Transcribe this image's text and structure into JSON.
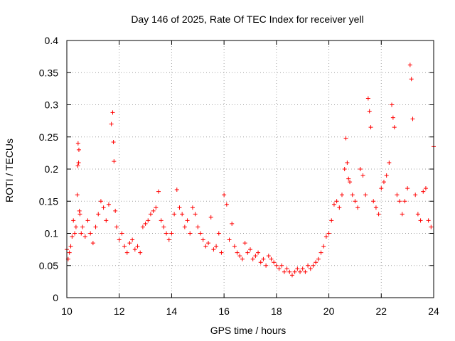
{
  "chart_data": {
    "type": "scatter",
    "title": "Day 146 of 2025, Rate Of TEC Index for receiver yell",
    "xlabel": "GPS time / hours",
    "ylabel": "ROTI / TECUs",
    "xlim": [
      10,
      24
    ],
    "ylim": [
      0,
      0.4
    ],
    "xticks": [
      10,
      12,
      14,
      16,
      18,
      20,
      22,
      24
    ],
    "xtick_labels": [
      "10",
      "12",
      "14",
      "16",
      "18",
      "20",
      "22",
      "24"
    ],
    "yticks": [
      0,
      0.05,
      0.1,
      0.15,
      0.2,
      0.25,
      0.3,
      0.35,
      0.4
    ],
    "ytick_labels": [
      "0",
      "0.05",
      "0.1",
      "0.15",
      "0.2",
      "0.25",
      "0.3",
      "0.35",
      "0.4"
    ],
    "grid": true,
    "marker": "+",
    "color": "#ff0000",
    "series": [
      {
        "name": "ROTI",
        "x": [
          10.0,
          10.05,
          10.1,
          10.15,
          10.2,
          10.25,
          10.3,
          10.35,
          10.4,
          10.42,
          10.43,
          10.45,
          10.46,
          10.48,
          10.5,
          10.55,
          10.6,
          10.7,
          10.8,
          10.9,
          11.0,
          11.1,
          11.2,
          11.3,
          11.4,
          11.5,
          11.6,
          11.7,
          11.75,
          11.78,
          11.8,
          11.85,
          11.9,
          12.0,
          12.1,
          12.2,
          12.3,
          12.4,
          12.5,
          12.6,
          12.7,
          12.8,
          12.9,
          13.0,
          13.1,
          13.2,
          13.3,
          13.4,
          13.5,
          13.6,
          13.7,
          13.8,
          13.9,
          14.0,
          14.1,
          14.2,
          14.3,
          14.4,
          14.5,
          14.6,
          14.7,
          14.8,
          14.9,
          15.0,
          15.1,
          15.2,
          15.3,
          15.4,
          15.5,
          15.6,
          15.7,
          15.8,
          15.9,
          16.0,
          16.1,
          16.2,
          16.3,
          16.4,
          16.5,
          16.6,
          16.7,
          16.8,
          16.9,
          17.0,
          17.1,
          17.2,
          17.3,
          17.4,
          17.5,
          17.6,
          17.7,
          17.8,
          17.9,
          18.0,
          18.1,
          18.2,
          18.3,
          18.4,
          18.5,
          18.6,
          18.7,
          18.8,
          18.9,
          19.0,
          19.1,
          19.2,
          19.3,
          19.4,
          19.5,
          19.6,
          19.7,
          19.8,
          19.9,
          20.0,
          20.1,
          20.2,
          20.3,
          20.4,
          20.5,
          20.6,
          20.65,
          20.7,
          20.75,
          20.8,
          20.9,
          21.0,
          21.1,
          21.2,
          21.3,
          21.4,
          21.5,
          21.55,
          21.6,
          21.7,
          21.8,
          21.9,
          22.0,
          22.1,
          22.2,
          22.3,
          22.4,
          22.45,
          22.5,
          22.6,
          22.7,
          22.8,
          22.9,
          23.0,
          23.1,
          23.15,
          23.2,
          23.3,
          23.4,
          23.5,
          23.6,
          23.7,
          23.8,
          23.9,
          24.0
        ],
        "y": [
          0.075,
          0.06,
          0.07,
          0.08,
          0.095,
          0.12,
          0.1,
          0.11,
          0.16,
          0.205,
          0.24,
          0.21,
          0.23,
          0.135,
          0.13,
          0.1,
          0.11,
          0.095,
          0.12,
          0.1,
          0.085,
          0.11,
          0.13,
          0.15,
          0.14,
          0.12,
          0.145,
          0.27,
          0.288,
          0.242,
          0.212,
          0.135,
          0.11,
          0.09,
          0.1,
          0.08,
          0.07,
          0.085,
          0.09,
          0.075,
          0.08,
          0.07,
          0.11,
          0.115,
          0.12,
          0.13,
          0.135,
          0.14,
          0.165,
          0.12,
          0.11,
          0.1,
          0.09,
          0.1,
          0.13,
          0.168,
          0.14,
          0.13,
          0.11,
          0.12,
          0.1,
          0.14,
          0.13,
          0.11,
          0.1,
          0.09,
          0.08,
          0.085,
          0.125,
          0.075,
          0.08,
          0.1,
          0.07,
          0.16,
          0.145,
          0.09,
          0.115,
          0.08,
          0.07,
          0.065,
          0.06,
          0.085,
          0.07,
          0.075,
          0.06,
          0.065,
          0.07,
          0.055,
          0.06,
          0.05,
          0.065,
          0.06,
          0.055,
          0.05,
          0.045,
          0.05,
          0.04,
          0.045,
          0.04,
          0.035,
          0.04,
          0.045,
          0.04,
          0.045,
          0.04,
          0.05,
          0.045,
          0.05,
          0.055,
          0.06,
          0.07,
          0.08,
          0.095,
          0.1,
          0.12,
          0.145,
          0.15,
          0.14,
          0.16,
          0.2,
          0.248,
          0.21,
          0.185,
          0.18,
          0.16,
          0.15,
          0.14,
          0.2,
          0.19,
          0.16,
          0.31,
          0.29,
          0.265,
          0.15,
          0.14,
          0.13,
          0.17,
          0.18,
          0.19,
          0.21,
          0.3,
          0.28,
          0.265,
          0.16,
          0.15,
          0.13,
          0.15,
          0.17,
          0.362,
          0.34,
          0.278,
          0.16,
          0.13,
          0.12,
          0.165,
          0.17,
          0.12,
          0.11,
          0.235
        ]
      }
    ]
  }
}
